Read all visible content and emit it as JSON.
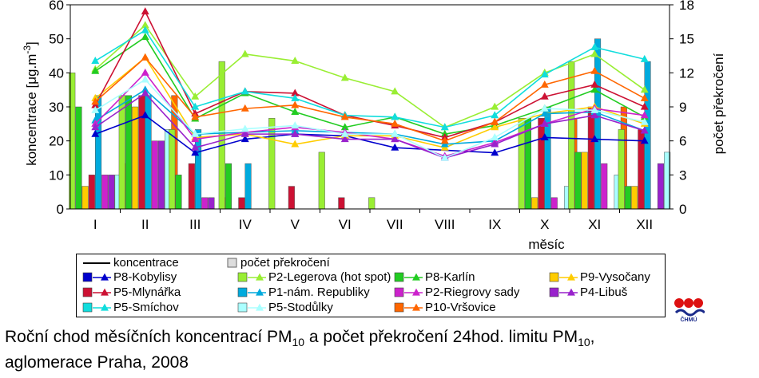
{
  "chart_data": {
    "type": "bar",
    "categories": [
      "I",
      "II",
      "III",
      "IV",
      "V",
      "VI",
      "VII",
      "VIII",
      "IX",
      "X",
      "XI",
      "XII"
    ],
    "xlabel": "měsíc",
    "ylabel": "koncentrace [μg.m-3]",
    "y2label": "počet překročení",
    "ylim": [
      0,
      60
    ],
    "y2lim": [
      0,
      18
    ],
    "yticks": [
      "0",
      "10",
      "20",
      "30",
      "40",
      "50",
      "60"
    ],
    "y2ticks": [
      "0",
      "3",
      "6",
      "9",
      "12",
      "15",
      "18"
    ],
    "legend_header": {
      "line": "koncentrace",
      "bar": "počet překročení"
    },
    "series": [
      {
        "name": "P8-Kobylisy",
        "color": "#0000cc",
        "concentration": [
          22,
          27.5,
          16.5,
          20.5,
          22,
          21.5,
          18,
          null,
          16.5,
          21,
          20.5,
          20
        ],
        "exceedances": [
          null,
          null,
          null,
          null,
          null,
          null,
          null,
          null,
          null,
          null,
          null,
          null
        ]
      },
      {
        "name": "P2-Legerova (hot spot)",
        "color": "#99ee33",
        "concentration": [
          41,
          54,
          33,
          45.5,
          43.5,
          38.5,
          34.5,
          24,
          30,
          40,
          45.5,
          35
        ],
        "exceedances": [
          12,
          10,
          7,
          13,
          8,
          5,
          1,
          0,
          0,
          8,
          13,
          7
        ]
      },
      {
        "name": "P8-Karlín",
        "color": "#22cc22",
        "concentration": [
          40.5,
          50.5,
          26.5,
          34,
          28.5,
          24,
          27,
          22,
          24.5,
          29.5,
          35,
          27
        ],
        "exceedances": [
          9,
          10,
          3,
          4,
          0,
          0,
          0,
          0,
          0,
          8,
          5,
          2
        ]
      },
      {
        "name": "P9-Vysočany",
        "color": "#ffcc00",
        "concentration": [
          32.5,
          44.5,
          21,
          22,
          19,
          21.5,
          21.5,
          18,
          24,
          28,
          30,
          25
        ],
        "exceedances": [
          2,
          9,
          0,
          0,
          0,
          0,
          0,
          0,
          0,
          1,
          5,
          2
        ]
      },
      {
        "name": "P5-Mlynářka",
        "color": "#cc1133",
        "concentration": [
          30.5,
          58,
          28,
          34.5,
          34,
          27.5,
          24.5,
          21,
          25.5,
          33,
          36.5,
          30
        ],
        "exceedances": [
          3,
          10,
          4,
          1,
          2,
          1,
          0,
          0,
          0,
          8,
          9,
          7
        ]
      },
      {
        "name": "P1-nám. Republiky",
        "color": "#00aadd",
        "concentration": [
          26,
          35,
          22,
          22.5,
          23,
          22.5,
          22,
          19,
          20,
          28,
          28.5,
          23
        ],
        "exceedances": [
          10,
          10,
          7,
          4,
          0,
          0,
          0,
          0,
          0,
          9,
          15,
          13
        ]
      },
      {
        "name": "P2-Riegrovy sady",
        "color": "#cc22cc",
        "concentration": [
          25,
          40,
          20.5,
          22.5,
          24,
          22.5,
          20.5,
          15.5,
          19.5,
          25,
          29.5,
          27.5
        ],
        "exceedances": [
          3,
          6,
          1,
          0,
          0,
          0,
          0,
          0,
          0,
          1,
          4,
          0
        ]
      },
      {
        "name": "P4-Libuš",
        "color": "#9922cc",
        "concentration": [
          24,
          34,
          18,
          22,
          22,
          20.5,
          20.5,
          15,
          19,
          25,
          27.5,
          23
        ],
        "exceedances": [
          3,
          6,
          1,
          0,
          0,
          0,
          0,
          0,
          0,
          0,
          0,
          4
        ]
      },
      {
        "name": "P5-Smíchov",
        "color": "#11dddd",
        "concentration": [
          43.5,
          52.5,
          30,
          34.5,
          32.5,
          27.5,
          27,
          24,
          27.5,
          39.5,
          47.5,
          44
        ]
      },
      {
        "name": "P5-Stodůlky",
        "color": "#aaffff",
        "concentration": [
          29,
          38,
          22,
          23.5,
          24.5,
          22,
          22,
          15,
          21,
          29.5,
          29,
          25.5
        ],
        "exceedances": [
          3,
          7,
          0,
          0,
          0,
          0,
          0,
          0,
          0,
          2,
          3,
          5
        ]
      },
      {
        "name": "P10-Vršovice",
        "color": "#ff6600",
        "concentration": [
          31.5,
          44.5,
          27,
          29.5,
          30.5,
          27,
          25,
          20,
          25.5,
          36.5,
          40.5,
          32.5
        ],
        "exceedances": [
          4,
          10,
          1,
          0,
          0,
          0,
          0,
          0,
          0,
          8,
          9,
          0
        ]
      }
    ]
  },
  "legend": {
    "header_line_label": "koncentrace",
    "header_bar_label": "počet překročení",
    "items": [
      "P8-Kobylisy",
      "P2-Legerova (hot spot)",
      "P8-Karlín",
      "P9-Vysočany",
      "P5-Mlynářka",
      "P1-nám. Republiky",
      "P2-Riegrovy sady",
      "P4-Libuš",
      "P5-Smíchov",
      "P5-Stodůlky",
      "P10-Vršovice"
    ]
  },
  "caption": {
    "line1_a": "Roční chod měsíčních koncentrací PM",
    "line1_sub1": "10",
    "line1_b": " a počet překročení 24hod. limitu PM",
    "line1_sub2": "10",
    "line1_c": ",",
    "line2": "aglomerace Praha, 2008"
  },
  "logo": {
    "text": "ČHMÚ"
  }
}
